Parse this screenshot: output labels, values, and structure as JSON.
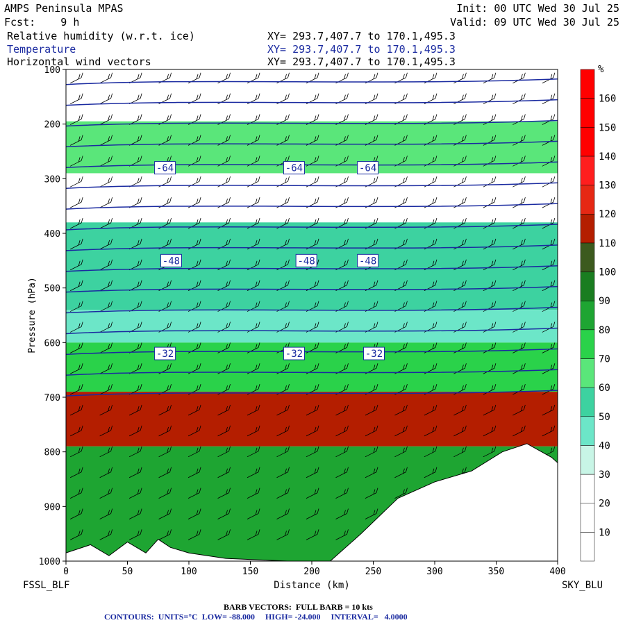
{
  "header": {
    "model": "AMPS Peninsula MPAS",
    "forecast": "Fcst:    9 h",
    "init": "Init: 00 UTC Wed 30 Jul 25",
    "valid": "Valid: 09 UTC Wed 30 Jul 25",
    "field1": "Relative humidity (w.r.t. ice)",
    "field2": "Temperature",
    "field3": "Horizontal wind vectors",
    "xy1": "XY= 293.7,407.7 to 170.1,495.3",
    "xy2": "XY= 293.7,407.7 to 170.1,495.3",
    "xy3": "XY= 293.7,407.7 to 170.1,495.3"
  },
  "colors": {
    "contour": "#1a2aa0",
    "rh_scale": [
      "#ffffff",
      "#ffffff",
      "#ffffff",
      "#c8f5e6",
      "#6ce6c8",
      "#3dd2a0",
      "#5ae67a",
      "#2ad24a",
      "#1ea532",
      "#1a7d20",
      "#3c5a1e",
      "#b41e00",
      "#e62814",
      "#ff1e1e",
      "#ff0000",
      "#ff0000",
      "#ff0000"
    ]
  },
  "labels": {
    "left_station": "FSSL_BLF",
    "right_station": "SKY_BLU",
    "barb_note": "BARB VECTORS:  FULL BARB = 10 kts",
    "contour_note": "CONTOURS:  UNITS=°C  LOW= -88.000     HIGH= -24.000     INTERVAL=   4.0000"
  },
  "chart_data": {
    "type": "heatmap",
    "title": "Relative humidity (w.r.t. ice)",
    "xlabel": "Distance (km)",
    "ylabel": "Pressure (hPa)",
    "xlim": [
      0,
      400
    ],
    "ylim": [
      1000,
      100
    ],
    "x_ticks": [
      0,
      50,
      100,
      150,
      200,
      250,
      300,
      350,
      400
    ],
    "y_ticks": [
      100,
      200,
      300,
      400,
      500,
      600,
      700,
      800,
      900,
      1000
    ],
    "colorbar": {
      "unit": "%",
      "ticks": [
        10,
        20,
        30,
        40,
        50,
        60,
        70,
        80,
        90,
        100,
        110,
        120,
        130,
        140,
        150,
        160
      ],
      "bins": [
        0,
        10,
        20,
        30,
        40,
        50,
        60,
        70,
        80,
        90,
        100,
        110,
        120,
        130,
        140,
        150,
        160,
        170
      ]
    },
    "rh_layers": [
      {
        "p_top": 100,
        "p_bottom": 195,
        "rh": 25
      },
      {
        "p_top": 195,
        "p_bottom": 290,
        "rh": 65
      },
      {
        "p_top": 290,
        "p_bottom": 380,
        "rh": 20
      },
      {
        "p_top": 380,
        "p_bottom": 540,
        "rh": 55
      },
      {
        "p_top": 540,
        "p_bottom": 600,
        "rh": 45
      },
      {
        "p_top": 600,
        "p_bottom": 690,
        "rh": 75
      },
      {
        "p_top": 690,
        "p_bottom": 790,
        "rh": 115
      },
      {
        "p_top": 790,
        "p_bottom": 1000,
        "rh": 85
      }
    ],
    "temperature_contours": [
      {
        "label": "-64",
        "label_x": [
          80,
          185,
          245
        ],
        "pressure": 280
      },
      {
        "label": "-48",
        "label_x": [
          85,
          195,
          245
        ],
        "pressure": 450
      },
      {
        "label": "-32",
        "label_x": [
          80,
          185,
          250
        ],
        "pressure": 620
      }
    ],
    "terrain": [
      [
        0,
        985
      ],
      [
        20,
        970
      ],
      [
        35,
        990
      ],
      [
        50,
        965
      ],
      [
        65,
        985
      ],
      [
        75,
        960
      ],
      [
        85,
        975
      ],
      [
        100,
        985
      ],
      [
        130,
        995
      ],
      [
        180,
        1000
      ],
      [
        215,
        1000
      ],
      [
        240,
        950
      ],
      [
        270,
        885
      ],
      [
        300,
        855
      ],
      [
        330,
        835
      ],
      [
        355,
        800
      ],
      [
        375,
        785
      ],
      [
        395,
        810
      ],
      [
        400,
        820
      ]
    ]
  }
}
